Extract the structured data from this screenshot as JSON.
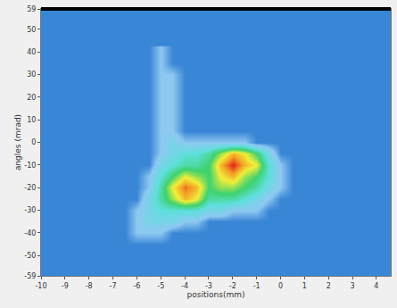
{
  "chart_data": {
    "type": "heatmap",
    "x_label": "positions(mm)",
    "y_label": "angles (mrad)",
    "x": [
      -6.5,
      -6,
      -5.5,
      -5,
      -4.5,
      -4,
      -3.5,
      -3,
      -2.5,
      -2,
      -1.5,
      -1,
      -0.5,
      0,
      0.5
    ],
    "y": [
      -45,
      -40,
      -35,
      -30,
      -25,
      -20,
      -15,
      -10,
      -5,
      0,
      5,
      10,
      15,
      20,
      25,
      30,
      35,
      40
    ],
    "z": [
      [
        0,
        0,
        0,
        0,
        0,
        0,
        0,
        0,
        0,
        0,
        0,
        0,
        0,
        0,
        0
      ],
      [
        0,
        1,
        1,
        1,
        0,
        0,
        0,
        0,
        0,
        0,
        0,
        0,
        0,
        0,
        0
      ],
      [
        0,
        1,
        2,
        2,
        2,
        1,
        1,
        0,
        0,
        0,
        0,
        0,
        0,
        0,
        0
      ],
      [
        0,
        1,
        2,
        3,
        3,
        3,
        3,
        2,
        2,
        1,
        1,
        1,
        0,
        0,
        0
      ],
      [
        0,
        0,
        2,
        4,
        6,
        8,
        7,
        4,
        4,
        4,
        3,
        2,
        1,
        0,
        0
      ],
      [
        0,
        0,
        1,
        4,
        7,
        9,
        8,
        5,
        6,
        6,
        5,
        4,
        2,
        1,
        0
      ],
      [
        0,
        0,
        1,
        3,
        5,
        7,
        6,
        5,
        7,
        8,
        6,
        5,
        3,
        1,
        0
      ],
      [
        0,
        0,
        0,
        2,
        3,
        4,
        4,
        5,
        8,
        10,
        8,
        7,
        3,
        1,
        0
      ],
      [
        0,
        0,
        0,
        1,
        2,
        3,
        3,
        4,
        6,
        8,
        7,
        5,
        2,
        0,
        0
      ],
      [
        0,
        0,
        0,
        1,
        2,
        1,
        1,
        1,
        1,
        1,
        1,
        0,
        0,
        0,
        0
      ],
      [
        0,
        0,
        0,
        1,
        1,
        0,
        0,
        0,
        0,
        0,
        0,
        0,
        0,
        0,
        0
      ],
      [
        0,
        0,
        0,
        1,
        1,
        0,
        0,
        0,
        0,
        0,
        0,
        0,
        0,
        0,
        0
      ],
      [
        0,
        0,
        0,
        1,
        1,
        0,
        0,
        0,
        0,
        0,
        0,
        0,
        0,
        0,
        0
      ],
      [
        0,
        0,
        0,
        1,
        1,
        0,
        0,
        0,
        0,
        0,
        0,
        0,
        0,
        0,
        0
      ],
      [
        0,
        0,
        0,
        1,
        1,
        0,
        0,
        0,
        0,
        0,
        0,
        0,
        0,
        0,
        0
      ],
      [
        0,
        0,
        0,
        1,
        1,
        0,
        0,
        0,
        0,
        0,
        0,
        0,
        0,
        0,
        0
      ],
      [
        0,
        0,
        0,
        1,
        0,
        0,
        0,
        0,
        0,
        0,
        0,
        0,
        0,
        0,
        0
      ],
      [
        0,
        0,
        0,
        1,
        0,
        0,
        0,
        0,
        0,
        0,
        0,
        0,
        0,
        0,
        0
      ]
    ],
    "xlim": [
      -10,
      4.6
    ],
    "ylim": [
      -59,
      59
    ],
    "xticks": [
      -10,
      -9,
      -8,
      -7,
      -6,
      -5,
      -4,
      -3,
      -2,
      -1,
      0,
      1,
      2,
      3,
      4
    ],
    "yticks": [
      -59,
      -50,
      -40,
      -30,
      -20,
      -10,
      0,
      10,
      20,
      30,
      40,
      50,
      59
    ],
    "grid": false
  }
}
